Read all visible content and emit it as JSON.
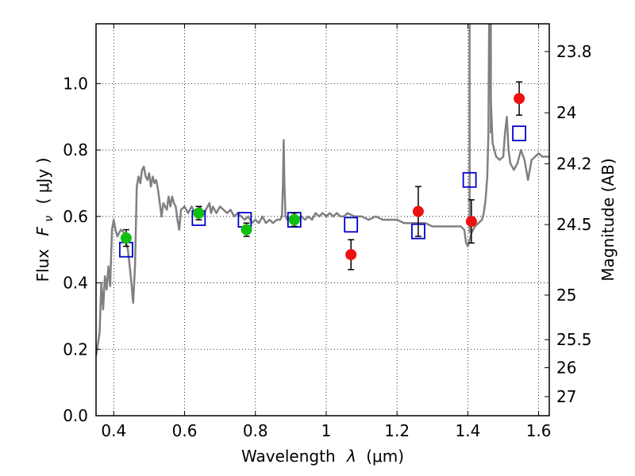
{
  "chart_data": {
    "type": "scatter",
    "xlabel_prefix": "Wavelength",
    "xlabel_symbol": "λ",
    "xlabel_unit": "(μm)",
    "ylabel_prefix": "Flux",
    "ylabel_symbol": "F",
    "ylabel_subscript": "ν",
    "ylabel_unit": "( μJy )",
    "y2label": "Magnitude (AB)",
    "xlim": [
      0.35,
      1.63
    ],
    "ylim": [
      0.0,
      1.18
    ],
    "grid": true,
    "x_ticks": [
      {
        "value": 0.4,
        "label": "0.4"
      },
      {
        "value": 0.6,
        "label": "0.6"
      },
      {
        "value": 0.8,
        "label": "0.8"
      },
      {
        "value": 1.0,
        "label": "1"
      },
      {
        "value": 1.2,
        "label": "1.2"
      },
      {
        "value": 1.4,
        "label": "1.4"
      },
      {
        "value": 1.6,
        "label": "1.6"
      }
    ],
    "y_ticks": [
      {
        "value": 0.0,
        "label": "0.0"
      },
      {
        "value": 0.2,
        "label": "0.2"
      },
      {
        "value": 0.4,
        "label": "0.4"
      },
      {
        "value": 0.6,
        "label": "0.6"
      },
      {
        "value": 0.8,
        "label": "0.8"
      },
      {
        "value": 1.0,
        "label": "1.0"
      }
    ],
    "y2_ticks": [
      {
        "mag": 23.8,
        "label": "23.8"
      },
      {
        "mag": 24.0,
        "label": "24"
      },
      {
        "mag": 24.2,
        "label": "24.2"
      },
      {
        "mag": 24.5,
        "label": "24.5"
      },
      {
        "mag": 25.0,
        "label": "25"
      },
      {
        "mag": 25.5,
        "label": "25.5"
      },
      {
        "mag": 26.0,
        "label": "26"
      },
      {
        "mag": 27.0,
        "label": "27"
      }
    ],
    "colors": {
      "model": "#808080",
      "green_points": "#10c010",
      "red_points": "#ee1111",
      "model_boxes": "#0000cc",
      "errorbar": "#000000"
    },
    "model_spectrum": [
      [
        0.35,
        0.18
      ],
      [
        0.36,
        0.25
      ],
      [
        0.365,
        0.4
      ],
      [
        0.37,
        0.32
      ],
      [
        0.375,
        0.42
      ],
      [
        0.38,
        0.38
      ],
      [
        0.385,
        0.45
      ],
      [
        0.39,
        0.39
      ],
      [
        0.395,
        0.56
      ],
      [
        0.4,
        0.59
      ],
      [
        0.405,
        0.56
      ],
      [
        0.41,
        0.54
      ],
      [
        0.42,
        0.56
      ],
      [
        0.43,
        0.55
      ],
      [
        0.435,
        0.52
      ],
      [
        0.44,
        0.5
      ],
      [
        0.445,
        0.45
      ],
      [
        0.448,
        0.42
      ],
      [
        0.45,
        0.4
      ],
      [
        0.453,
        0.36
      ],
      [
        0.455,
        0.34
      ],
      [
        0.46,
        0.45
      ],
      [
        0.465,
        0.69
      ],
      [
        0.47,
        0.72
      ],
      [
        0.475,
        0.7
      ],
      [
        0.48,
        0.74
      ],
      [
        0.485,
        0.75
      ],
      [
        0.49,
        0.72
      ],
      [
        0.495,
        0.71
      ],
      [
        0.5,
        0.73
      ],
      [
        0.505,
        0.69
      ],
      [
        0.51,
        0.72
      ],
      [
        0.515,
        0.7
      ],
      [
        0.52,
        0.71
      ],
      [
        0.525,
        0.68
      ],
      [
        0.53,
        0.64
      ],
      [
        0.535,
        0.6
      ],
      [
        0.54,
        0.64
      ],
      [
        0.545,
        0.63
      ],
      [
        0.55,
        0.62
      ],
      [
        0.555,
        0.66
      ],
      [
        0.56,
        0.63
      ],
      [
        0.565,
        0.66
      ],
      [
        0.57,
        0.64
      ],
      [
        0.575,
        0.63
      ],
      [
        0.58,
        0.59
      ],
      [
        0.585,
        0.56
      ],
      [
        0.59,
        0.62
      ],
      [
        0.6,
        0.63
      ],
      [
        0.61,
        0.61
      ],
      [
        0.62,
        0.63
      ],
      [
        0.63,
        0.61
      ],
      [
        0.635,
        0.62
      ],
      [
        0.64,
        0.61
      ],
      [
        0.645,
        0.63
      ],
      [
        0.65,
        0.6
      ],
      [
        0.66,
        0.62
      ],
      [
        0.67,
        0.64
      ],
      [
        0.675,
        0.61
      ],
      [
        0.68,
        0.63
      ],
      [
        0.69,
        0.61
      ],
      [
        0.7,
        0.63
      ],
      [
        0.71,
        0.62
      ],
      [
        0.72,
        0.61
      ],
      [
        0.73,
        0.62
      ],
      [
        0.74,
        0.6
      ],
      [
        0.75,
        0.61
      ],
      [
        0.76,
        0.6
      ],
      [
        0.77,
        0.59
      ],
      [
        0.78,
        0.6
      ],
      [
        0.79,
        0.58
      ],
      [
        0.8,
        0.59
      ],
      [
        0.81,
        0.58
      ],
      [
        0.82,
        0.6
      ],
      [
        0.83,
        0.58
      ],
      [
        0.84,
        0.59
      ],
      [
        0.85,
        0.58
      ],
      [
        0.86,
        0.59
      ],
      [
        0.87,
        0.59
      ],
      [
        0.875,
        0.6
      ],
      [
        0.878,
        0.7
      ],
      [
        0.88,
        0.83
      ],
      [
        0.882,
        0.7
      ],
      [
        0.885,
        0.6
      ],
      [
        0.89,
        0.59
      ],
      [
        0.9,
        0.6
      ],
      [
        0.91,
        0.58
      ],
      [
        0.92,
        0.59
      ],
      [
        0.93,
        0.6
      ],
      [
        0.94,
        0.59
      ],
      [
        0.95,
        0.6
      ],
      [
        0.96,
        0.59
      ],
      [
        0.97,
        0.61
      ],
      [
        0.98,
        0.6
      ],
      [
        0.99,
        0.61
      ],
      [
        1.0,
        0.6
      ],
      [
        1.01,
        0.61
      ],
      [
        1.02,
        0.6
      ],
      [
        1.03,
        0.61
      ],
      [
        1.04,
        0.6
      ],
      [
        1.05,
        0.6
      ],
      [
        1.06,
        0.61
      ],
      [
        1.08,
        0.6
      ],
      [
        1.1,
        0.6
      ],
      [
        1.12,
        0.59
      ],
      [
        1.14,
        0.6
      ],
      [
        1.16,
        0.59
      ],
      [
        1.18,
        0.59
      ],
      [
        1.2,
        0.59
      ],
      [
        1.22,
        0.58
      ],
      [
        1.24,
        0.58
      ],
      [
        1.26,
        0.58
      ],
      [
        1.28,
        0.58
      ],
      [
        1.3,
        0.57
      ],
      [
        1.32,
        0.57
      ],
      [
        1.34,
        0.57
      ],
      [
        1.36,
        0.57
      ],
      [
        1.38,
        0.57
      ],
      [
        1.39,
        0.56
      ],
      [
        1.395,
        0.52
      ],
      [
        1.4,
        0.51
      ],
      [
        1.405,
        0.53
      ],
      [
        1.41,
        0.55
      ],
      [
        1.415,
        0.56
      ],
      [
        1.42,
        0.57
      ],
      [
        1.43,
        0.58
      ],
      [
        1.44,
        0.59
      ],
      [
        1.445,
        0.61
      ],
      [
        1.45,
        0.65
      ],
      [
        1.455,
        0.72
      ],
      [
        1.458,
        0.85
      ],
      [
        1.46,
        1.18
      ],
      [
        1.462,
        1.18
      ],
      [
        1.465,
        0.95
      ],
      [
        1.47,
        0.82
      ],
      [
        1.48,
        0.78
      ],
      [
        1.49,
        0.77
      ],
      [
        1.5,
        0.78
      ],
      [
        1.505,
        0.85
      ],
      [
        1.51,
        0.9
      ],
      [
        1.515,
        0.8
      ],
      [
        1.52,
        0.76
      ],
      [
        1.53,
        0.74
      ],
      [
        1.54,
        0.76
      ],
      [
        1.55,
        0.8
      ],
      [
        1.56,
        0.77
      ],
      [
        1.565,
        0.74
      ],
      [
        1.57,
        0.71
      ],
      [
        1.575,
        0.74
      ],
      [
        1.58,
        0.77
      ],
      [
        1.59,
        0.78
      ],
      [
        1.6,
        0.79
      ],
      [
        1.61,
        0.78
      ],
      [
        1.62,
        0.78
      ],
      [
        1.63,
        0.78
      ]
    ],
    "model_lines": [
      {
        "x": 1.405,
        "from": 0.55,
        "to": 1.18
      },
      {
        "x": 1.465,
        "from": 0.85,
        "to": 1.18
      }
    ],
    "model_photometry": [
      {
        "x": 0.435,
        "y": 0.5
      },
      {
        "x": 0.64,
        "y": 0.595
      },
      {
        "x": 0.77,
        "y": 0.59
      },
      {
        "x": 0.91,
        "y": 0.59
      },
      {
        "x": 1.07,
        "y": 0.575
      },
      {
        "x": 1.26,
        "y": 0.555
      },
      {
        "x": 1.405,
        "y": 0.71
      },
      {
        "x": 1.545,
        "y": 0.85
      }
    ],
    "observed_green": [
      {
        "x": 0.435,
        "y": 0.535,
        "err": 0.025
      },
      {
        "x": 0.64,
        "y": 0.61,
        "err": 0.02
      },
      {
        "x": 0.775,
        "y": 0.56,
        "err": 0.02
      },
      {
        "x": 0.91,
        "y": 0.59,
        "err": 0.02
      }
    ],
    "observed_red": [
      {
        "x": 1.07,
        "y": 0.485,
        "err": 0.045
      },
      {
        "x": 1.26,
        "y": 0.615,
        "err": 0.075
      },
      {
        "x": 1.41,
        "y": 0.585,
        "err": 0.065
      },
      {
        "x": 1.545,
        "y": 0.955,
        "err": 0.05
      }
    ]
  }
}
